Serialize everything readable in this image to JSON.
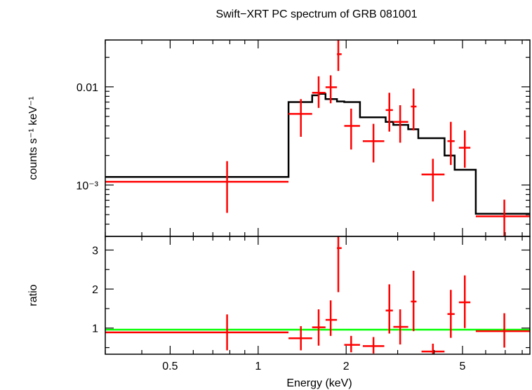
{
  "chart_data": {
    "type": "scatter",
    "title": "Swift−XRT PC spectrum of GRB 081001",
    "xlabel": "Energy (keV)",
    "xscale": "log",
    "xlim": [
      0.3,
      8.5
    ],
    "x_ticks": [
      {
        "value": 0.5,
        "label": "0.5"
      },
      {
        "value": 1,
        "label": "1"
      },
      {
        "value": 2,
        "label": "2"
      },
      {
        "value": 5,
        "label": "5"
      }
    ],
    "panels": [
      {
        "name": "spectrum",
        "ylabel": "counts s⁻¹ keV⁻¹",
        "yscale": "log",
        "ylim": [
          0.0003,
          0.03
        ],
        "y_ticks": [
          {
            "value": 0.001,
            "label": "10⁻³"
          },
          {
            "value": 0.01,
            "label": "0.01"
          }
        ],
        "colors": {
          "data": "#ff0000",
          "model": "#000000"
        },
        "data_points": [
          {
            "x": 0.783,
            "xlo": 0.3,
            "xhi": 1.27,
            "y": 0.00108,
            "ylo": 0.00052,
            "yhi": 0.00175
          },
          {
            "x": 1.4,
            "xlo": 1.27,
            "xhi": 1.53,
            "y": 0.0053,
            "ylo": 0.0031,
            "yhi": 0.0075
          },
          {
            "x": 1.61,
            "xlo": 1.53,
            "xhi": 1.7,
            "y": 0.0087,
            "ylo": 0.0061,
            "yhi": 0.0128
          },
          {
            "x": 1.77,
            "xlo": 1.7,
            "xhi": 1.86,
            "y": 0.0099,
            "ylo": 0.0068,
            "yhi": 0.0131
          },
          {
            "x": 1.88,
            "xlo": 1.86,
            "xhi": 1.93,
            "y": 0.0215,
            "ylo": 0.0145,
            "yhi": 0.0305
          },
          {
            "x": 2.08,
            "xlo": 1.97,
            "xhi": 2.23,
            "y": 0.004,
            "ylo": 0.0023,
            "yhi": 0.006
          },
          {
            "x": 2.48,
            "xlo": 2.28,
            "xhi": 2.7,
            "y": 0.0028,
            "ylo": 0.0017,
            "yhi": 0.0042
          },
          {
            "x": 2.81,
            "xlo": 2.73,
            "xhi": 2.89,
            "y": 0.0058,
            "ylo": 0.0035,
            "yhi": 0.0087
          },
          {
            "x": 3.06,
            "xlo": 2.9,
            "xhi": 3.26,
            "y": 0.0044,
            "ylo": 0.0027,
            "yhi": 0.0065
          },
          {
            "x": 3.4,
            "xlo": 3.33,
            "xhi": 3.48,
            "y": 0.0063,
            "ylo": 0.0036,
            "yhi": 0.0096
          },
          {
            "x": 3.96,
            "xlo": 3.62,
            "xhi": 4.34,
            "y": 0.00128,
            "ylo": 0.00068,
            "yhi": 0.00185
          },
          {
            "x": 4.56,
            "xlo": 4.44,
            "xhi": 4.7,
            "y": 0.0028,
            "ylo": 0.0016,
            "yhi": 0.0044
          },
          {
            "x": 5.09,
            "xlo": 4.86,
            "xhi": 5.32,
            "y": 0.0024,
            "ylo": 0.0015,
            "yhi": 0.0036
          },
          {
            "x": 6.95,
            "xlo": 5.55,
            "xhi": 8.5,
            "y": 0.00048,
            "ylo": 0.00027,
            "yhi": 0.00071
          }
        ],
        "model_steps": [
          {
            "xlo": 0.3,
            "xhi": 1.27,
            "y": 0.00121
          },
          {
            "xlo": 1.27,
            "xhi": 1.53,
            "y": 0.007
          },
          {
            "xlo": 1.53,
            "xhi": 1.61,
            "y": 0.0082
          },
          {
            "xlo": 1.61,
            "xhi": 1.7,
            "y": 0.0085
          },
          {
            "xlo": 1.7,
            "xhi": 1.86,
            "y": 0.0075
          },
          {
            "xlo": 1.86,
            "xhi": 1.97,
            "y": 0.0071
          },
          {
            "xlo": 1.97,
            "xhi": 2.23,
            "y": 0.007
          },
          {
            "xlo": 2.23,
            "xhi": 2.73,
            "y": 0.0049
          },
          {
            "xlo": 2.73,
            "xhi": 2.9,
            "y": 0.0044
          },
          {
            "xlo": 2.9,
            "xhi": 3.26,
            "y": 0.0041
          },
          {
            "xlo": 3.26,
            "xhi": 3.53,
            "y": 0.0037
          },
          {
            "xlo": 3.53,
            "xhi": 4.34,
            "y": 0.003
          },
          {
            "xlo": 4.34,
            "xhi": 4.7,
            "y": 0.002
          },
          {
            "xlo": 4.7,
            "xhi": 5.55,
            "y": 0.00143
          },
          {
            "xlo": 5.55,
            "xhi": 8.5,
            "y": 0.00051
          }
        ]
      },
      {
        "name": "ratio",
        "ylabel": "ratio",
        "yscale": "linear",
        "ylim": [
          0.33,
          3.35
        ],
        "y_ticks": [
          {
            "value": 1,
            "label": "1"
          },
          {
            "value": 2,
            "label": "2"
          },
          {
            "value": 3,
            "label": "3"
          }
        ],
        "reference_line": {
          "y": 0.96,
          "color": "#00ff00"
        },
        "colors": {
          "data": "#ff0000"
        },
        "data_points": [
          {
            "x": 0.783,
            "xlo": 0.3,
            "xhi": 1.27,
            "y": 0.89,
            "ylo": 0.43,
            "yhi": 1.35
          },
          {
            "x": 1.4,
            "xlo": 1.27,
            "xhi": 1.53,
            "y": 0.74,
            "ylo": 0.43,
            "yhi": 1.05
          },
          {
            "x": 1.61,
            "xlo": 1.53,
            "xhi": 1.7,
            "y": 1.02,
            "ylo": 0.55,
            "yhi": 1.48
          },
          {
            "x": 1.77,
            "xlo": 1.7,
            "xhi": 1.86,
            "y": 1.21,
            "ylo": 0.8,
            "yhi": 1.71
          },
          {
            "x": 1.88,
            "xlo": 1.86,
            "xhi": 1.93,
            "y": 3.05,
            "ylo": 1.92,
            "yhi": 3.35
          },
          {
            "x": 2.08,
            "xlo": 1.97,
            "xhi": 2.23,
            "y": 0.57,
            "ylo": 0.38,
            "yhi": 0.8
          },
          {
            "x": 2.48,
            "xlo": 2.28,
            "xhi": 2.7,
            "y": 0.54,
            "ylo": 0.35,
            "yhi": 0.77
          },
          {
            "x": 2.81,
            "xlo": 2.73,
            "xhi": 2.89,
            "y": 1.45,
            "ylo": 0.86,
            "yhi": 2.12
          },
          {
            "x": 3.06,
            "xlo": 2.9,
            "xhi": 3.26,
            "y": 1.03,
            "ylo": 0.58,
            "yhi": 1.48
          },
          {
            "x": 3.4,
            "xlo": 3.33,
            "xhi": 3.48,
            "y": 1.68,
            "ylo": 0.92,
            "yhi": 2.47
          },
          {
            "x": 3.96,
            "xlo": 3.62,
            "xhi": 4.34,
            "y": 0.4,
            "ylo": 0.33,
            "yhi": 0.6
          },
          {
            "x": 4.56,
            "xlo": 4.44,
            "xhi": 4.7,
            "y": 1.36,
            "ylo": 0.75,
            "yhi": 1.98
          },
          {
            "x": 5.09,
            "xlo": 4.86,
            "xhi": 5.32,
            "y": 1.66,
            "ylo": 1.0,
            "yhi": 2.35
          },
          {
            "x": 6.95,
            "xlo": 5.55,
            "xhi": 8.5,
            "y": 0.92,
            "ylo": 0.5,
            "yhi": 1.38
          }
        ]
      }
    ]
  }
}
